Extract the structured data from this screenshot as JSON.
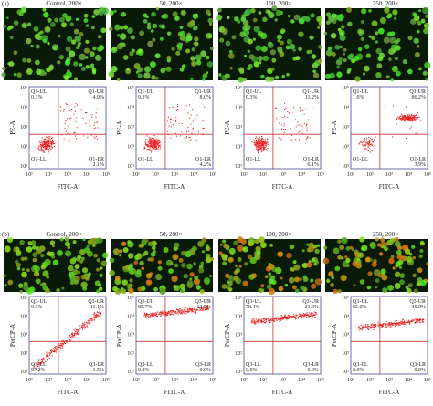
{
  "panels": [
    {
      "label": "(a)",
      "y_axis_label": "PE-A",
      "x_axis_label": "FITC-A",
      "samples": [
        {
          "title": "Control, 200×",
          "ul": {
            "name": "Q1-UL",
            "pct": "0.3%"
          },
          "ur": {
            "name": "Q1-UR",
            "pct": "4.9%"
          },
          "ll": {
            "name": "Q1-LL"
          },
          "lr": {
            "name": "Q1-LR",
            "pct": "2.1%"
          }
        },
        {
          "title": "50, 200×",
          "ul": {
            "name": "Q1-UL",
            "pct": "0.3%"
          },
          "ur": {
            "name": "Q1-UR",
            "pct": "8.0%"
          },
          "ll": {
            "name": "Q1-LL"
          },
          "lr": {
            "name": "Q1-LR",
            "pct": "4.2%"
          }
        },
        {
          "title": "100, 200×",
          "ul": {
            "name": "Q1-UL",
            "pct": "0.3%"
          },
          "ur": {
            "name": "Q1-UR",
            "pct": "11.2%"
          },
          "ll": {
            "name": "Q1-LL"
          },
          "lr": {
            "name": "Q1-LR",
            "pct": "6.1%"
          }
        },
        {
          "title": "250, 200×",
          "ul": {
            "name": "Q1-UL",
            "pct": "1.6%"
          },
          "ur": {
            "name": "Q1-UR",
            "pct": "86.2%"
          },
          "ll": {
            "name": "Q1-LL"
          },
          "lr": {
            "name": "Q1-LR",
            "pct": "3.9%"
          }
        }
      ]
    },
    {
      "label": "(b)",
      "y_axis_label": "PerCP-A",
      "x_axis_label": "FITC-A",
      "samples": [
        {
          "title": "Control, 200×",
          "ul": {
            "name": "Q3-UL",
            "pct": "0.3%"
          },
          "ur": {
            "name": "Q3-UR",
            "pct": "11.1%"
          },
          "ll": {
            "name": "Q3-LL",
            "pct": "87.2%"
          },
          "lr": {
            "name": "Q3-LR",
            "pct": "1.5%"
          }
        },
        {
          "title": "50, 200×",
          "ul": {
            "name": "Q3-UL",
            "pct": "85.7%"
          },
          "ur": {
            "name": "Q3-UR",
            "pct": "13.5%"
          },
          "ll": {
            "name": "Q3-LL",
            "pct": "0.8%"
          },
          "lr": {
            "name": "Q3-LR",
            "pct": "0.0%"
          }
        },
        {
          "title": "100, 200×",
          "ul": {
            "name": "Q3-UL",
            "pct": "78.4%"
          },
          "ur": {
            "name": "Q3-UR",
            "pct": "21.6%"
          },
          "ll": {
            "name": "Q3-LL",
            "pct": "0.0%"
          },
          "lr": {
            "name": "Q3-LR",
            "pct": "0.0%"
          }
        },
        {
          "title": "250, 200×",
          "ul": {
            "name": "Q3-UL",
            "pct": "65.0%"
          },
          "ur": {
            "name": "Q3-UR",
            "pct": "35.0%"
          },
          "ll": {
            "name": "Q3-LL",
            "pct": "0.0%"
          },
          "lr": {
            "name": "Q3-LR",
            "pct": "0.0%"
          }
        }
      ]
    }
  ],
  "y_ticks": [
    "10⁵",
    "10⁴",
    "10³",
    "10²",
    "10¹"
  ],
  "x_ticks": [
    "10¹",
    "10²",
    "10³",
    "10⁴",
    "10⁵"
  ]
}
